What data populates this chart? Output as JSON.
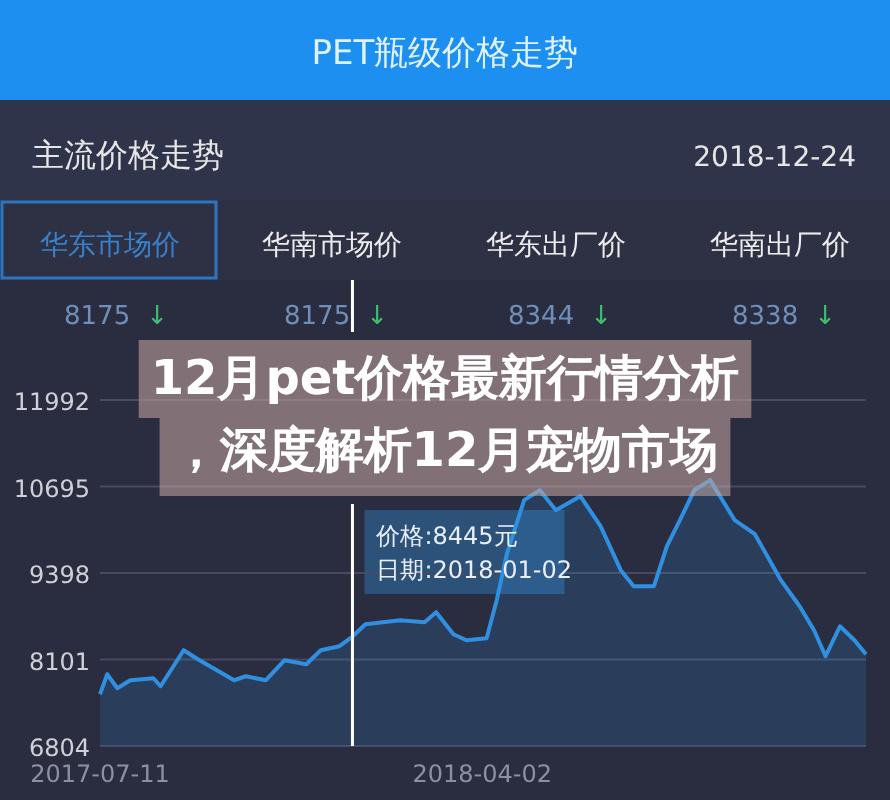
{
  "chart_data": {
    "type": "area",
    "title": "PET瓶级价格走势",
    "subtitle": "主流价格走势",
    "annotations": [
      "2018-12-24",
      "华东市场价",
      "华南市场价",
      "华东出厂价",
      "华南出厂价",
      "8175 ↓",
      "8175 ↓",
      "8344 ↓",
      "8338 ↓",
      "12月pet价格最新行情分析",
      "，深度解析12月宠物市场",
      "价格:8445元",
      "日期:2018-01-02"
    ],
    "x": [
      "2017-07-11",
      "2017-07-16",
      "2017-07-23",
      "2017-08-01",
      "2017-08-17",
      "2017-08-22",
      "2017-09-07",
      "2017-09-18",
      "2017-10-12",
      "2017-10-20",
      "2017-11-03",
      "2017-11-16",
      "2017-12-01",
      "2017-12-11",
      "2017-12-24",
      "2018-01-02",
      "2018-01-11",
      "2018-02-04",
      "2018-02-21",
      "2018-03-01",
      "2018-03-13",
      "2018-03-22",
      "2018-04-05",
      "2018-04-12",
      "2018-04-19",
      "2018-05-01",
      "2018-05-12",
      "2018-05-23",
      "2018-06-09",
      "2018-06-23",
      "2018-07-07",
      "2018-07-16",
      "2018-07-30",
      "2018-08-08",
      "2018-08-17",
      "2018-08-27",
      "2018-09-07",
      "2018-09-24",
      "2018-10-08",
      "2018-10-26",
      "2018-11-08",
      "2018-11-18",
      "2018-11-26",
      "2018-12-06",
      "2018-12-16",
      "2018-12-24"
    ],
    "series": [
      {
        "color": "#2f8fe0",
        "values": [
          7580,
          7880,
          7670,
          7790,
          7820,
          7700,
          8240,
          8090,
          7790,
          7850,
          7790,
          8090,
          8030,
          8240,
          8300,
          8445,
          8630,
          8690,
          8660,
          8810,
          8480,
          8390,
          8420,
          8990,
          9680,
          10490,
          10640,
          10340,
          10550,
          10100,
          9440,
          9200,
          9200,
          9800,
          10190,
          10640,
          10790,
          10190,
          9980,
          9290,
          8900,
          8540,
          8150,
          8600,
          8390,
          8180
        ]
      }
    ],
    "xlim": [
      "2017-07-11",
      "2018-12-24"
    ],
    "xticks": [
      "2017-07-11",
      "2018-04-02"
    ],
    "ylim": [
      6804,
      11992
    ],
    "yticks": [
      6804,
      8101,
      9398,
      10695,
      11992
    ],
    "grid": "y",
    "ref_lines": [
      {
        "axis": "x",
        "value": "2018-01-02",
        "color": "#ffffff"
      }
    ]
  }
}
